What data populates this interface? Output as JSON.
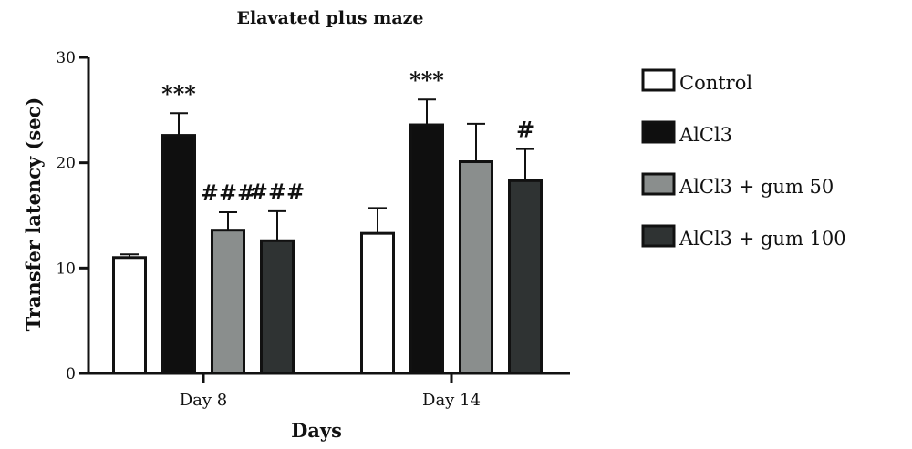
{
  "chart_data": {
    "type": "bar",
    "title": "Elavated plus maze",
    "xlabel": "Days",
    "ylabel": "Transfer latency (sec)",
    "ylim": [
      0,
      30
    ],
    "yticks": [
      0,
      10,
      20,
      30
    ],
    "categories": [
      "Day 8",
      "Day 14"
    ],
    "grid": false,
    "legend_position": "right",
    "series": [
      {
        "name": "Control",
        "color": "#ffffff",
        "values": [
          11.0,
          13.3
        ],
        "errors": [
          0.3,
          2.4
        ],
        "annotations": [
          "",
          ""
        ]
      },
      {
        "name": "AlCl3",
        "color": "#0f0f0f",
        "values": [
          22.6,
          23.6
        ],
        "errors": [
          2.1,
          2.4
        ],
        "annotations": [
          "***",
          "***"
        ]
      },
      {
        "name": "AlCl3 + gum 50",
        "color": "#8a8e8d",
        "values": [
          13.6,
          20.1
        ],
        "errors": [
          1.7,
          3.6
        ],
        "annotations": [
          "###",
          ""
        ]
      },
      {
        "name": "AlCl3 + gum 100",
        "color": "#2f3333",
        "values": [
          12.6,
          18.3
        ],
        "errors": [
          2.8,
          3.0
        ],
        "annotations": [
          "###",
          "#"
        ]
      }
    ]
  }
}
